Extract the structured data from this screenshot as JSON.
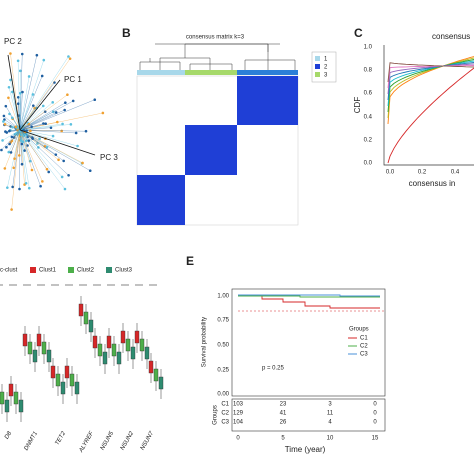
{
  "panel_a": {
    "axis_labels": [
      "PC 2",
      "PC 1",
      "PC 3"
    ]
  },
  "panel_b": {
    "label": "B",
    "title": "consensus matrix k=3",
    "legend": [
      "1",
      "2",
      "3"
    ]
  },
  "panel_c": {
    "label": "C",
    "title": "consensus",
    "y_label": "CDF",
    "x_label": "consensus in",
    "y_ticks": [
      "1.0",
      "0.8",
      "0.6",
      "0.4",
      "0.2",
      "0.0"
    ],
    "x_ticks": [
      "0.0",
      "0.2",
      "0.4"
    ]
  },
  "panel_d": {
    "legend_title": "c-clust",
    "legend": [
      "Clust1",
      "Clust2",
      "Clust3"
    ],
    "genes": [
      "D8",
      "DNMT1",
      "TET2",
      "ALYREF",
      "NSUN5",
      "NSUN2",
      "NSUN7"
    ]
  },
  "panel_e": {
    "label": "E",
    "y_label": "Survival probability",
    "y_ticks": [
      "1.00",
      "0.75",
      "0.50",
      "0.25",
      "0.00"
    ],
    "p_value": "p = 0.25",
    "legend_title": "Groups",
    "legend": [
      "C1",
      "C2",
      "C3"
    ],
    "risk_table": {
      "y_label": "Groups",
      "rows": [
        {
          "group": "C1",
          "counts": [
            "103",
            "23",
            "3",
            "0"
          ]
        },
        {
          "group": "C2",
          "counts": [
            "129",
            "41",
            "11",
            "0"
          ]
        },
        {
          "group": "C3",
          "counts": [
            "104",
            "26",
            "4",
            "0"
          ]
        }
      ]
    },
    "x_ticks": [
      "0",
      "5",
      "10",
      "15"
    ],
    "x_label": "Time (year)"
  }
}
